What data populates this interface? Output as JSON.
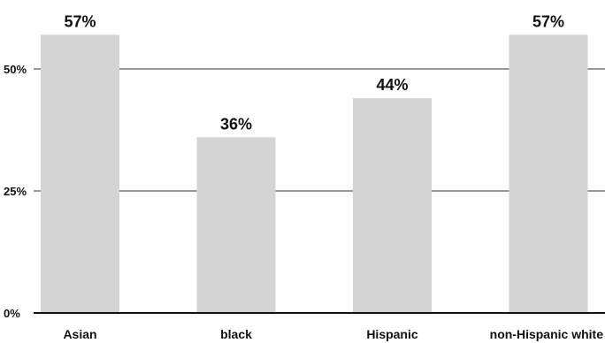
{
  "chart_data": {
    "type": "bar",
    "categories": [
      "Asian",
      "black",
      "Hispanic",
      "non-Hispanic white"
    ],
    "values": [
      57,
      36,
      44,
      57
    ],
    "data_labels": [
      "57%",
      "36%",
      "44%",
      "57%"
    ],
    "ylim": [
      0,
      65
    ],
    "yticks": [
      0,
      25,
      50
    ],
    "ytick_labels": [
      "0%",
      "25%",
      "50%"
    ],
    "grid": true,
    "bar_color": "#d4d4d4",
    "grid_color": "#333333"
  }
}
